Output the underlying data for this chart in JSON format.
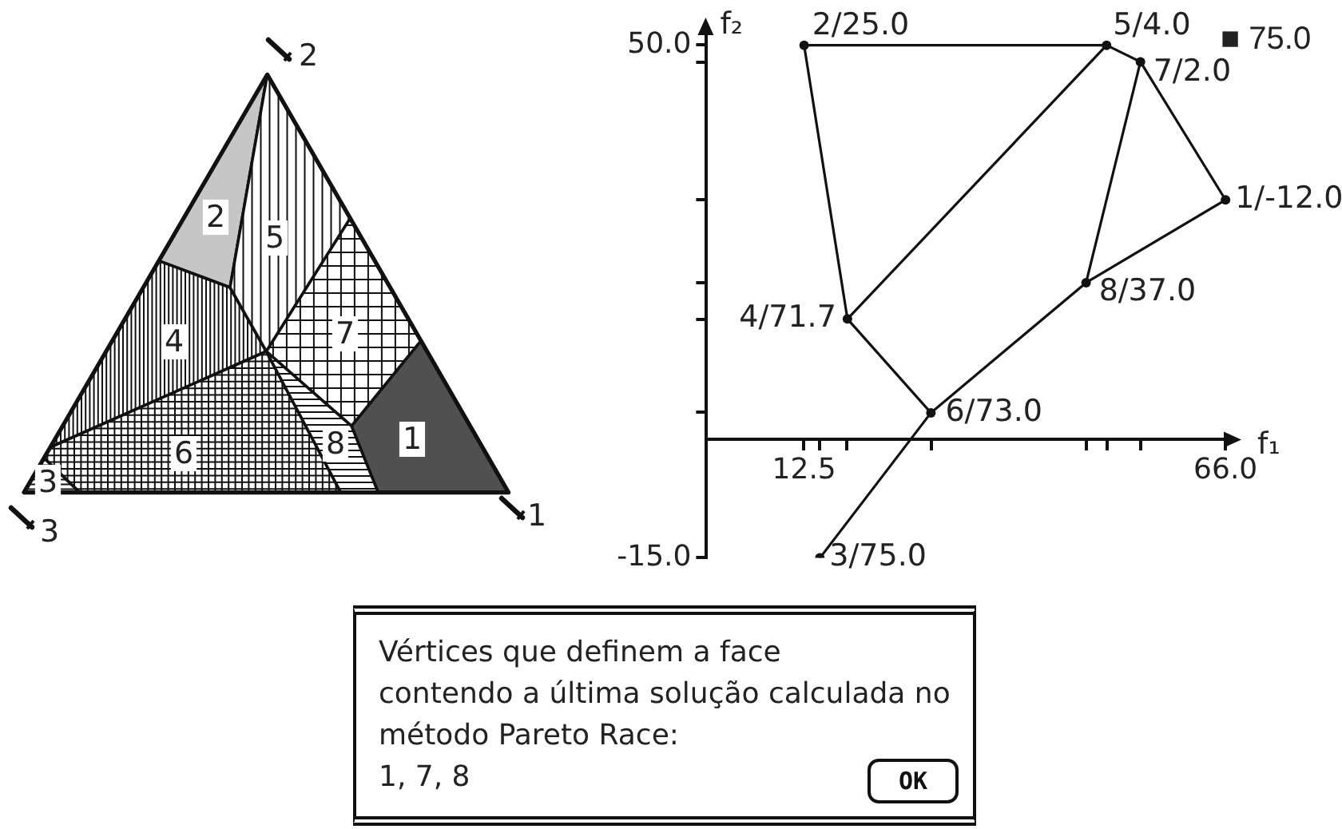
{
  "chart_data": [
    {
      "type": "other",
      "annotations": [
        "2",
        "3",
        "1",
        "1",
        "2",
        "3",
        "4",
        "5",
        "6",
        "7",
        "8"
      ]
    },
    {
      "type": "scatter",
      "xlabel": "f₁",
      "ylabel": "f₂",
      "xlim": [
        0,
        67.2
      ],
      "ylim": [
        -15.0,
        52.7
      ],
      "xticks": [
        12.5,
        {
          "value": 14.5,
          "label": null
        },
        {
          "value": 18.0,
          "label": null
        },
        {
          "value": 28.6,
          "label": null
        },
        {
          "value": 48.3,
          "label": null
        },
        {
          "value": 50.9,
          "label": null
        },
        {
          "value": 55.2,
          "label": null
        },
        {
          "value": 66.0,
          "label": "66.0"
        }
      ],
      "yticks": [
        {
          "value": -15.0,
          "label": "-15.0"
        },
        {
          "value": 3.4,
          "label": null
        },
        {
          "value": 15.3,
          "label": null
        },
        {
          "value": 19.9,
          "label": null
        },
        {
          "value": 30.4,
          "label": null
        },
        {
          "value": 47.9,
          "label": null
        },
        {
          "value": 50.0,
          "label": "50.0"
        }
      ],
      "grid": false,
      "legend": false,
      "annotations": [
        "■ 75.0"
      ],
      "series": [
        {
          "type": "scatter",
          "color": "#111111",
          "marker": "circle",
          "x": [
            66.0,
            12.5,
            14.5,
            18.0,
            50.9,
            28.6,
            55.2,
            48.3
          ],
          "values": [
            30.4,
            50.0,
            -15.0,
            15.3,
            50.0,
            3.4,
            47.9,
            19.9
          ],
          "value_labels": [
            "1/-12.0",
            "2/25.0",
            "3/75.0",
            "4/71.7",
            "5/4.0",
            "6/73.0",
            "7/2.0",
            "8/37.0"
          ]
        },
        {
          "type": "line",
          "color": "#111111",
          "marker": "none",
          "x": [
            14.5,
            28.6,
            48.3,
            66.0,
            55.2,
            50.9,
            12.5,
            18.0,
            28.6
          ],
          "values": [
            -15.0,
            3.4,
            19.9,
            30.4,
            47.9,
            50.0,
            50.0,
            15.3,
            3.4
          ]
        },
        {
          "type": "line",
          "color": "#111111",
          "marker": "none",
          "x": [
            18.0,
            50.9
          ],
          "values": [
            15.3,
            50.0
          ]
        },
        {
          "type": "line",
          "color": "#111111",
          "marker": "none",
          "x": [
            55.2,
            48.3
          ],
          "values": [
            47.9,
            19.9
          ]
        }
      ]
    },
    {
      "type": "other",
      "annotations": [
        "Vértices que definem a face",
        "contendo a última solução calculada no",
        "método Pareto Race:",
        "1, 7, 8",
        "OK"
      ]
    }
  ]
}
